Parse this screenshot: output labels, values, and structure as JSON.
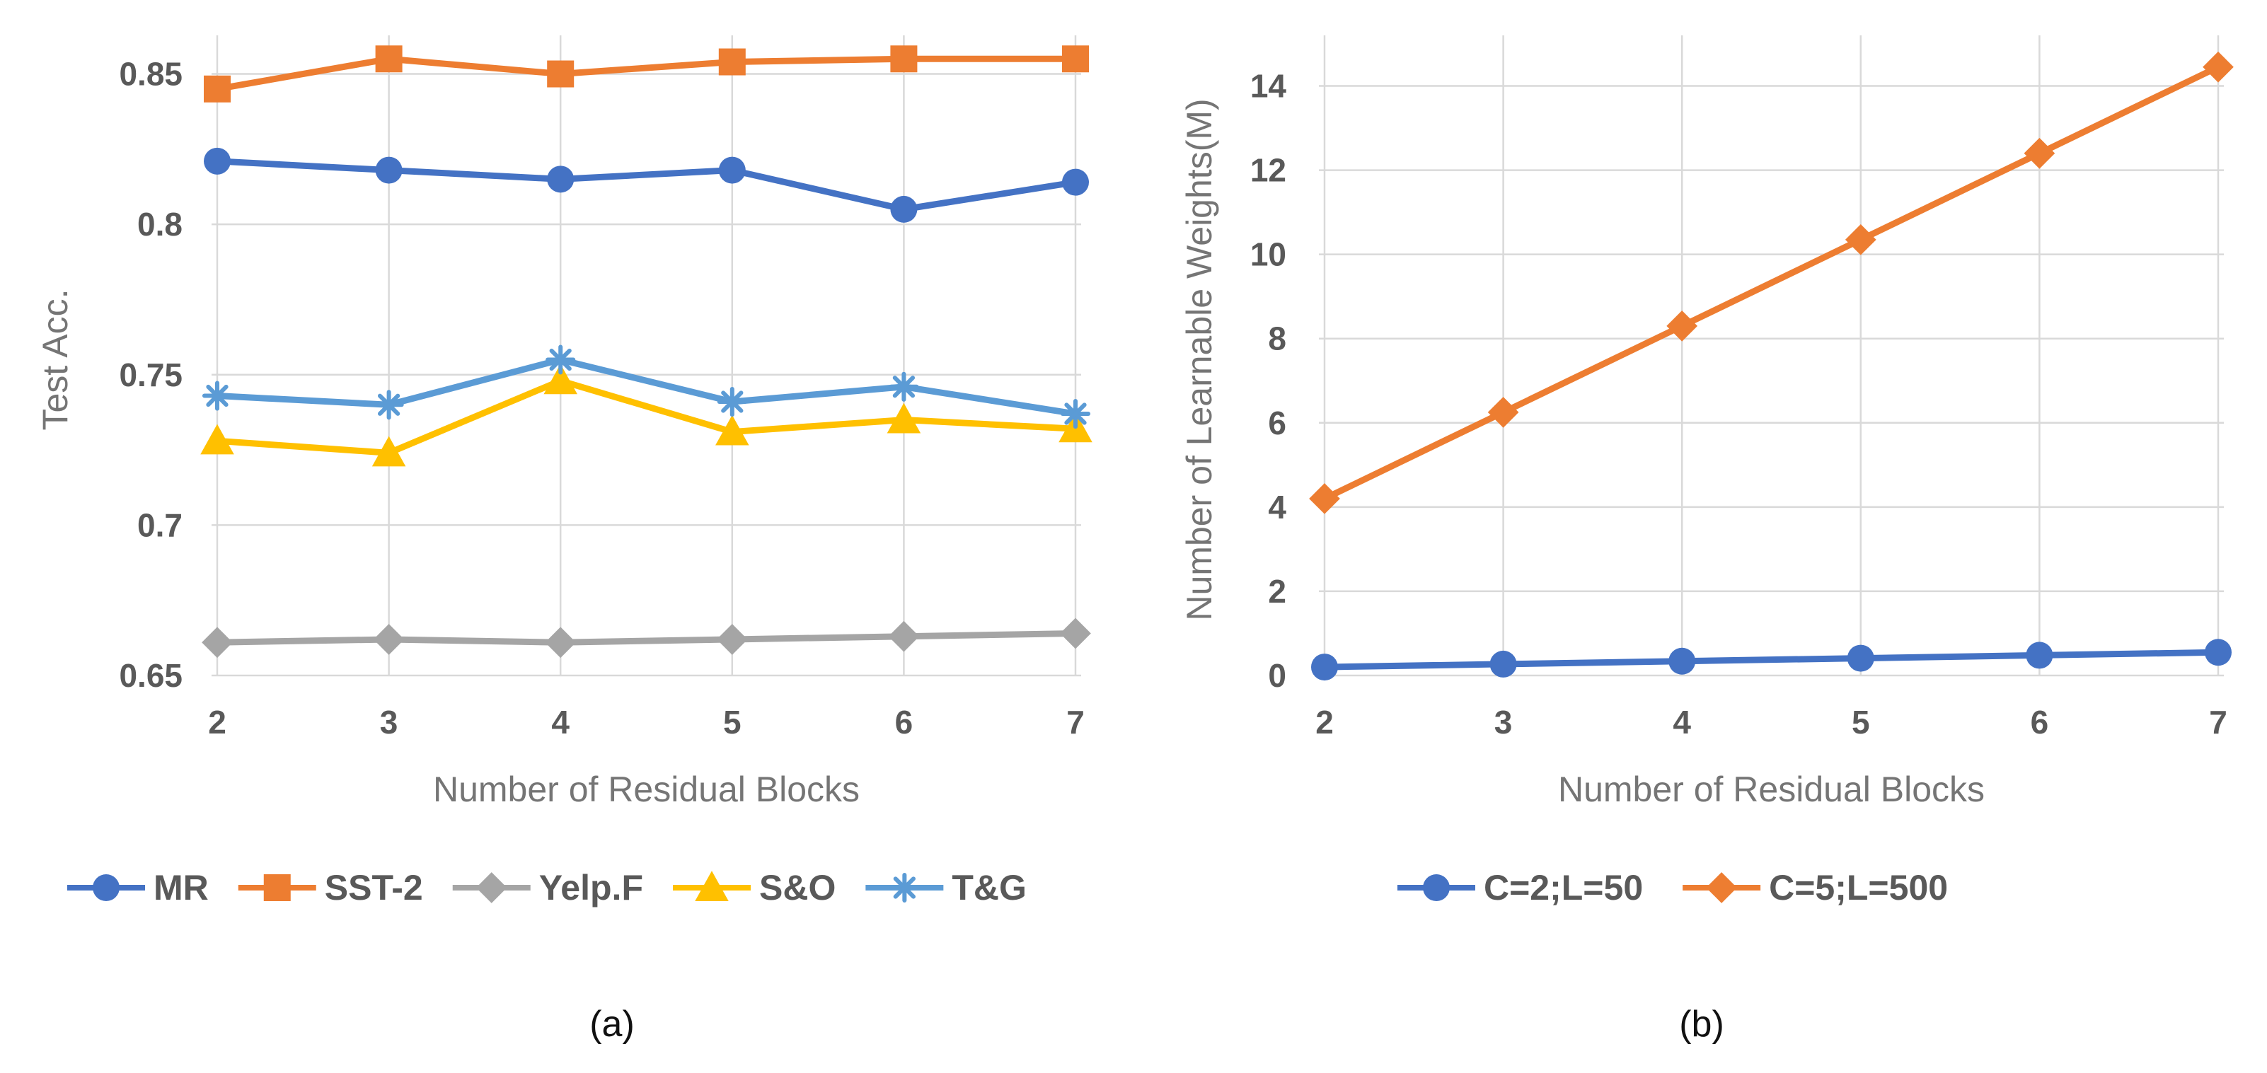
{
  "chart_data": [
    {
      "type": "line",
      "panel_label": "(a)",
      "ylabel": "Test Acc.",
      "xlabel": "Number of  Residual Blocks",
      "categories": [
        "2",
        "3",
        "4",
        "5",
        "6",
        "7"
      ],
      "ylim": [
        0.65,
        0.86
      ],
      "y_ticks": [
        0.65,
        0.7,
        0.75,
        0.8,
        0.85
      ],
      "y_tick_labels": [
        "0.65",
        "0.7",
        "0.75",
        "0.8",
        "0.85"
      ],
      "grid": true,
      "legend_position": "bottom",
      "series": [
        {
          "name": "MR",
          "color": "#4472C4",
          "marker": "circle",
          "values": [
            0.821,
            0.818,
            0.815,
            0.818,
            0.805,
            0.814
          ]
        },
        {
          "name": "SST-2",
          "color": "#ED7D31",
          "marker": "square",
          "values": [
            0.845,
            0.855,
            0.85,
            0.854,
            0.855,
            0.855
          ]
        },
        {
          "name": "Yelp.F",
          "color": "#A5A5A5",
          "marker": "diamond",
          "values": [
            0.661,
            0.662,
            0.661,
            0.662,
            0.663,
            0.664
          ]
        },
        {
          "name": "S&O",
          "color": "#FFC000",
          "marker": "triangle",
          "values": [
            0.728,
            0.724,
            0.748,
            0.731,
            0.735,
            0.732
          ]
        },
        {
          "name": "T&G",
          "color": "#5B9BD5",
          "marker": "star",
          "values": [
            0.743,
            0.74,
            0.755,
            0.741,
            0.746,
            0.737
          ]
        }
      ]
    },
    {
      "type": "line",
      "panel_label": "(b)",
      "ylabel": "Number of  Learnable Weights(M)",
      "xlabel": "Number of  Residual Blocks",
      "categories": [
        "2",
        "3",
        "4",
        "5",
        "6",
        "7"
      ],
      "ylim": [
        0,
        15
      ],
      "y_ticks": [
        0,
        2,
        4,
        6,
        8,
        10,
        12,
        14
      ],
      "y_tick_labels": [
        "0",
        "2",
        "4",
        "6",
        "8",
        "10",
        "12",
        "14"
      ],
      "grid": true,
      "legend_position": "bottom",
      "series": [
        {
          "name": "C=2;L=50",
          "color": "#4472C4",
          "marker": "circle",
          "values": [
            0.2,
            0.27,
            0.34,
            0.41,
            0.48,
            0.55
          ]
        },
        {
          "name": "C=5;L=500",
          "color": "#ED7D31",
          "marker": "diamond",
          "values": [
            4.2,
            6.25,
            8.3,
            10.35,
            12.4,
            14.45
          ]
        }
      ]
    }
  ]
}
